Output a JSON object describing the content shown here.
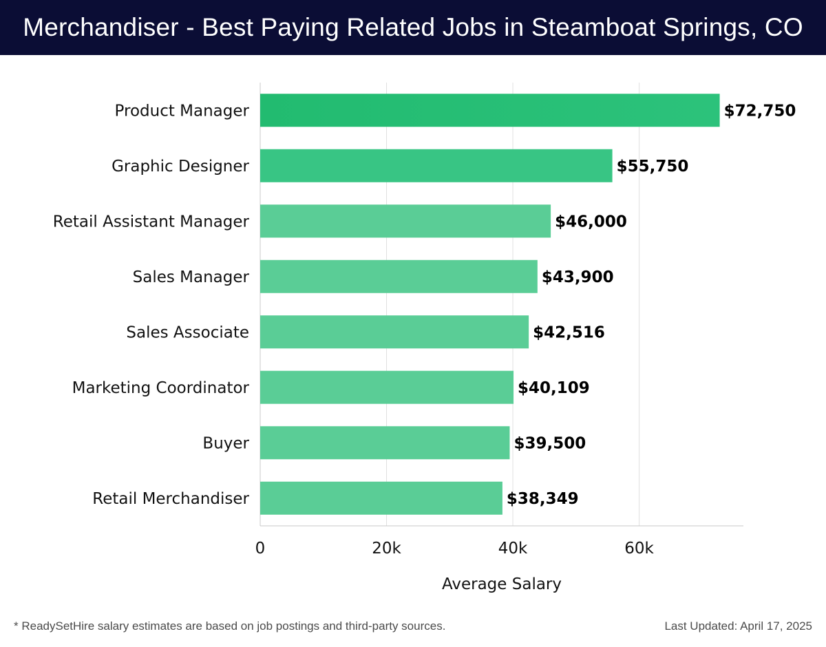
{
  "page": {
    "footnote": "* ReadySetHire salary estimates are based on job postings and third-party sources.",
    "last_updated": "Last Updated: April 17, 2025"
  },
  "colors": {
    "header_bg": "#0b0d35",
    "bar_top": "#27bf76",
    "bar_light": "#5acd96",
    "grid": "#e0e0e0",
    "axis": "#c8c8c8"
  },
  "chart_data": {
    "type": "bar",
    "orientation": "horizontal",
    "title": "Merchandiser - Best Paying Related Jobs in Steamboat Springs, CO",
    "xlabel": "Average Salary",
    "ylabel": "",
    "categories": [
      "Product Manager",
      "Graphic Designer",
      "Retail Assistant Manager",
      "Sales Manager",
      "Sales Associate",
      "Marketing Coordinator",
      "Buyer",
      "Retail Merchandiser"
    ],
    "values": [
      72750,
      55750,
      46000,
      43900,
      42516,
      40109,
      39500,
      38349
    ],
    "data_labels": [
      "$72,750",
      "$55,750",
      "$46,000",
      "$43,900",
      "$42,516",
      "$40,109",
      "$39,500",
      "$38,349"
    ],
    "xlim": [
      0,
      76500
    ],
    "xticks": [
      0,
      20000,
      40000,
      60000
    ],
    "xtick_labels": [
      "0",
      "20k",
      "40k",
      "60k"
    ],
    "grid": true,
    "legend": "none"
  }
}
